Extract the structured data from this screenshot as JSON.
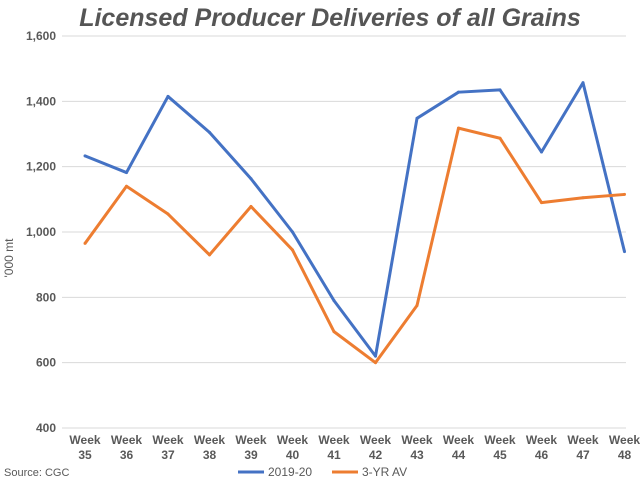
{
  "chart_data": {
    "type": "line",
    "title": "Licensed Producer Deliveries of all Grains",
    "xlabel": "",
    "ylabel": "'000 mt",
    "ylim": [
      400,
      1600
    ],
    "yticks": [
      400,
      600,
      800,
      1000,
      1200,
      1400,
      1600
    ],
    "ytick_labels": [
      "400",
      "600",
      "800",
      "1,000",
      "1,200",
      "1,400",
      "1,600"
    ],
    "categories": [
      [
        "Week",
        "35"
      ],
      [
        "Week",
        "36"
      ],
      [
        "Week",
        "37"
      ],
      [
        "Week",
        "38"
      ],
      [
        "Week",
        "39"
      ],
      [
        "Week",
        "40"
      ],
      [
        "Week",
        "41"
      ],
      [
        "Week",
        "42"
      ],
      [
        "Week",
        "43"
      ],
      [
        "Week",
        "44"
      ],
      [
        "Week",
        "45"
      ],
      [
        "Week",
        "46"
      ],
      [
        "Week",
        "47"
      ],
      [
        "Week",
        "48"
      ]
    ],
    "grid": true,
    "legend_position": "bottom",
    "series": [
      {
        "name": "2019-20",
        "color": "#4472C4",
        "values": [
          1233,
          1182,
          1415,
          1305,
          1163,
          1000,
          790,
          620,
          1348,
          1428,
          1435,
          1245,
          1457,
          940
        ]
      },
      {
        "name": "3-YR AV",
        "color": "#ED7D31",
        "values": [
          965,
          1140,
          1055,
          930,
          1078,
          945,
          695,
          600,
          775,
          1318,
          1287,
          1090,
          1105,
          1115
        ]
      }
    ],
    "source": "Source: CGC"
  }
}
